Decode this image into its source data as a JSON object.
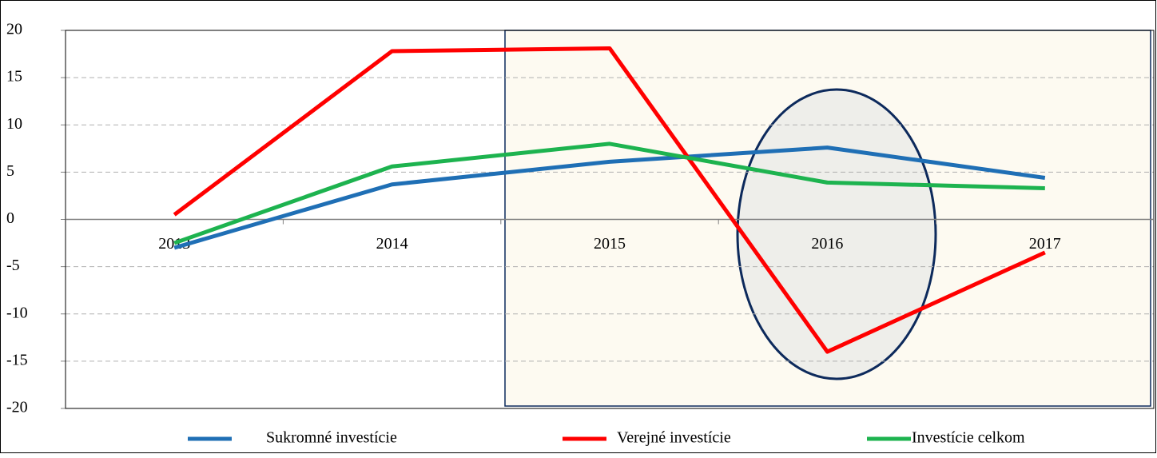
{
  "chart_data": {
    "type": "line",
    "categories": [
      "2013",
      "2014",
      "2015",
      "2016",
      "2017"
    ],
    "series": [
      {
        "name": "Sukromné investície",
        "color": "#1f6fb5",
        "values": [
          -3.0,
          3.7,
          6.1,
          7.6,
          4.4
        ]
      },
      {
        "name": "Verejné investície",
        "color": "#ff0000",
        "values": [
          0.5,
          17.8,
          18.1,
          -14.0,
          -3.5
        ]
      },
      {
        "name": "Investície celkom",
        "color": "#1db34f",
        "values": [
          -2.5,
          5.6,
          8.0,
          3.9,
          3.3
        ]
      }
    ],
    "ylim": [
      -20,
      20
    ],
    "yticks": [
      -20,
      -15,
      -10,
      -5,
      0,
      5,
      10,
      15,
      20
    ],
    "grid": true,
    "legend": "bottom"
  }
}
